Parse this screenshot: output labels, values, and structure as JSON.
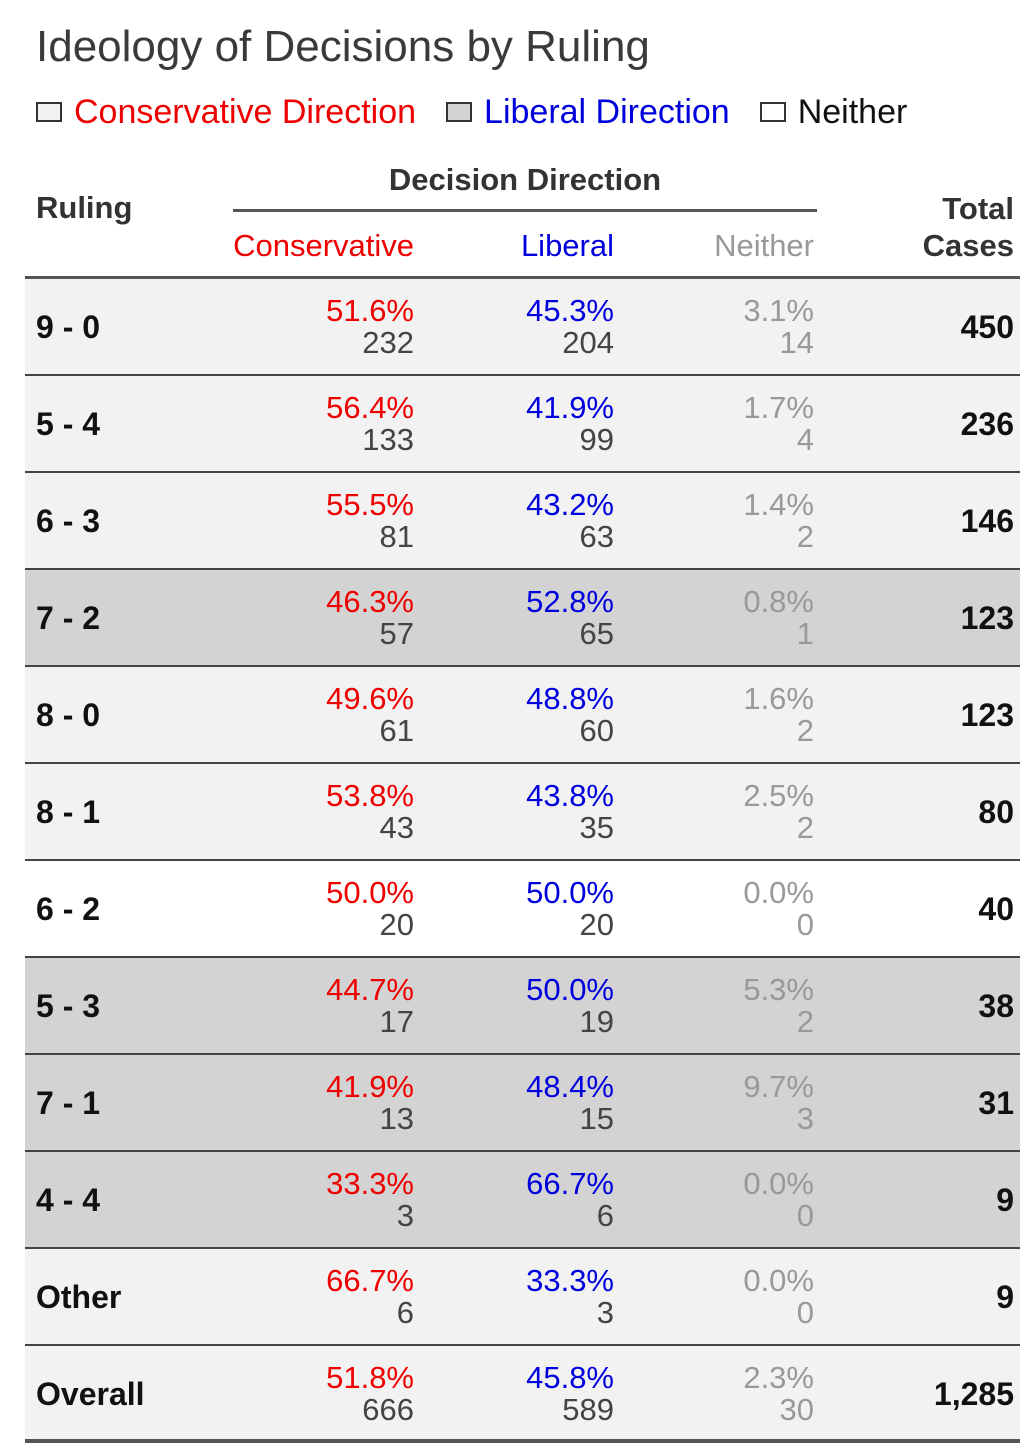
{
  "title": "Ideology of Decisions by Ruling",
  "legend": [
    {
      "label": "Conservative Direction",
      "color": "#ee0000",
      "fill": "#f2f2f2"
    },
    {
      "label": "Liberal Direction",
      "color": "#0000dd",
      "fill": "#d3d3d3"
    },
    {
      "label": "Neither",
      "color": "#111111",
      "fill": "#ffffff"
    }
  ],
  "header": {
    "ruling": "Ruling",
    "spanner": "Decision Direction",
    "conservative": "Conservative",
    "liberal": "Liberal",
    "neither": "Neither",
    "total_line1": "Total",
    "total_line2": "Cases"
  },
  "chart_data": {
    "type": "table",
    "title": "Ideology of Decisions by Ruling",
    "columns": [
      "Ruling",
      "Conservative",
      "Liberal",
      "Neither",
      "Total Cases"
    ],
    "row_fills": {
      "conservative": "#f2f2f2",
      "liberal": "#d3d3d3",
      "neither": "#ffffff"
    },
    "rows": [
      {
        "ruling": "9 - 0",
        "con_pct": "51.6%",
        "con_n": "232",
        "lib_pct": "45.3%",
        "lib_n": "204",
        "nei_pct": "3.1%",
        "nei_n": "14",
        "total": "450",
        "direction": "conservative"
      },
      {
        "ruling": "5 - 4",
        "con_pct": "56.4%",
        "con_n": "133",
        "lib_pct": "41.9%",
        "lib_n": "99",
        "nei_pct": "1.7%",
        "nei_n": "4",
        "total": "236",
        "direction": "conservative"
      },
      {
        "ruling": "6 - 3",
        "con_pct": "55.5%",
        "con_n": "81",
        "lib_pct": "43.2%",
        "lib_n": "63",
        "nei_pct": "1.4%",
        "nei_n": "2",
        "total": "146",
        "direction": "conservative"
      },
      {
        "ruling": "7 - 2",
        "con_pct": "46.3%",
        "con_n": "57",
        "lib_pct": "52.8%",
        "lib_n": "65",
        "nei_pct": "0.8%",
        "nei_n": "1",
        "total": "123",
        "direction": "liberal"
      },
      {
        "ruling": "8 - 0",
        "con_pct": "49.6%",
        "con_n": "61",
        "lib_pct": "48.8%",
        "lib_n": "60",
        "nei_pct": "1.6%",
        "nei_n": "2",
        "total": "123",
        "direction": "conservative"
      },
      {
        "ruling": "8 - 1",
        "con_pct": "53.8%",
        "con_n": "43",
        "lib_pct": "43.8%",
        "lib_n": "35",
        "nei_pct": "2.5%",
        "nei_n": "2",
        "total": "80",
        "direction": "conservative"
      },
      {
        "ruling": "6 - 2",
        "con_pct": "50.0%",
        "con_n": "20",
        "lib_pct": "50.0%",
        "lib_n": "20",
        "nei_pct": "0.0%",
        "nei_n": "0",
        "total": "40",
        "direction": "neither"
      },
      {
        "ruling": "5 - 3",
        "con_pct": "44.7%",
        "con_n": "17",
        "lib_pct": "50.0%",
        "lib_n": "19",
        "nei_pct": "5.3%",
        "nei_n": "2",
        "total": "38",
        "direction": "liberal"
      },
      {
        "ruling": "7 - 1",
        "con_pct": "41.9%",
        "con_n": "13",
        "lib_pct": "48.4%",
        "lib_n": "15",
        "nei_pct": "9.7%",
        "nei_n": "3",
        "total": "31",
        "direction": "liberal"
      },
      {
        "ruling": "4 - 4",
        "con_pct": "33.3%",
        "con_n": "3",
        "lib_pct": "66.7%",
        "lib_n": "6",
        "nei_pct": "0.0%",
        "nei_n": "0",
        "total": "9",
        "direction": "liberal"
      },
      {
        "ruling": "Other",
        "con_pct": "66.7%",
        "con_n": "6",
        "lib_pct": "33.3%",
        "lib_n": "3",
        "nei_pct": "0.0%",
        "nei_n": "0",
        "total": "9",
        "direction": "conservative"
      },
      {
        "ruling": "Overall",
        "con_pct": "51.8%",
        "con_n": "666",
        "lib_pct": "45.8%",
        "lib_n": "589",
        "nei_pct": "2.3%",
        "nei_n": "30",
        "total": "1,285",
        "direction": "conservative"
      }
    ]
  }
}
